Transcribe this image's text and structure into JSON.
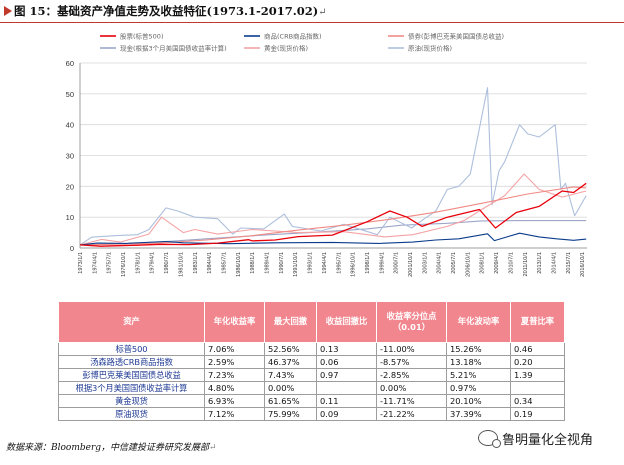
{
  "header": {
    "title": "图 15：基础资产净值走势及收益特征(1973.1-2017.02)",
    "return_mark": "↵"
  },
  "chart_data": {
    "type": "line",
    "title": "",
    "xlabel": "",
    "ylabel": "",
    "ylim": [
      0,
      60
    ],
    "yticks": [
      0,
      10,
      20,
      30,
      40,
      50,
      60
    ],
    "grid": true,
    "legend_position": "top",
    "x_ticks": [
      "1973/1/1",
      "1974/4/1",
      "1975/7/1",
      "1976/10/1",
      "1978/1/1",
      "1979/4/1",
      "1980/7/1",
      "1981/10/1",
      "1983/1/1",
      "1984/4/1",
      "1985/7/1",
      "1986/10/1",
      "1988/1/1",
      "1989/4/1",
      "1990/7/1",
      "1991/10/1",
      "1993/1/1",
      "1994/4/1",
      "1995/7/1",
      "1996/10/1",
      "1998/1/1",
      "1999/4/1",
      "2000/7/1",
      "2001/10/1",
      "2003/1/1",
      "2004/4/1",
      "2005/7/1",
      "2006/10/1",
      "2008/1/1",
      "2009/4/1",
      "2010/7/1",
      "2011/10/1",
      "2013/1/1",
      "2014/4/1",
      "2015/7/1",
      "2016/10/1"
    ],
    "series": [
      {
        "name": "股票(标普500)",
        "color": "#e8000b",
        "x": [
          1973,
          1974.8,
          1978,
          1980,
          1982.5,
          1985,
          1987.7,
          1988,
          1990,
          1992,
          1995,
          1998,
          2000,
          2001.5,
          2002.8,
          2005,
          2007.8,
          2009.2,
          2011,
          2013,
          2015,
          2016,
          2017.1
        ],
        "y": [
          1.0,
          0.6,
          0.9,
          1.2,
          1.1,
          1.6,
          2.7,
          2.3,
          2.6,
          3.7,
          4.2,
          8.5,
          12.0,
          10.0,
          7.0,
          10.0,
          12.5,
          6.5,
          11.5,
          13.5,
          18.5,
          18.0,
          21.0
        ]
      },
      {
        "name": "商品(CRB商品指数)",
        "color": "#0b3c8c",
        "x": [
          1973,
          1974.5,
          1977,
          1980.5,
          1982,
          1986,
          1990,
          1995,
          1999,
          2002,
          2004,
          2006,
          2008.5,
          2009.1,
          2011.3,
          2013,
          2014.5,
          2016,
          2017.1
        ],
        "y": [
          1.0,
          1.6,
          1.5,
          2.1,
          1.7,
          1.4,
          1.7,
          1.8,
          1.5,
          1.9,
          2.6,
          3.0,
          4.6,
          2.4,
          4.8,
          3.6,
          3.0,
          2.5,
          2.9
        ]
      },
      {
        "name": "债券(彭博巴克莱美国国债总收益)",
        "color": "#f08b85",
        "x": [
          1973,
          1977,
          1980,
          1984,
          1988,
          1992,
          1996,
          2000,
          2004,
          2008,
          2012,
          2016,
          2017.1
        ],
        "y": [
          1.0,
          1.3,
          1.6,
          2.6,
          4.0,
          5.8,
          7.4,
          9.3,
          11.6,
          14.5,
          17.5,
          19.8,
          19.5
        ]
      },
      {
        "name": "现金(根据3个月美国国债收益率计算)",
        "color": "#9da6c9",
        "x": [
          1973,
          1977,
          1981,
          1984,
          1989,
          1993,
          1998,
          2001,
          2005,
          2008,
          2012,
          2017.1
        ],
        "y": [
          1.0,
          1.4,
          2.2,
          3.0,
          4.2,
          5.0,
          6.2,
          7.4,
          8.0,
          8.8,
          8.9,
          8.9
        ]
      },
      {
        "name": "黄金(现货价格)",
        "color": "#f4a3a5",
        "x": [
          1973,
          1974.9,
          1976.5,
          1979,
          1980.1,
          1982,
          1983,
          1985,
          1988,
          1992,
          1996,
          1999.5,
          2002,
          2005,
          2006.5,
          2008,
          2010,
          2011.7,
          2013,
          2015,
          2017.1
        ],
        "y": [
          1.0,
          2.8,
          1.9,
          4.5,
          10.0,
          5.0,
          6.0,
          4.5,
          6.0,
          5.0,
          5.3,
          3.6,
          4.3,
          7.0,
          9.0,
          12.5,
          17.0,
          24.0,
          19.0,
          16.5,
          18.5
        ]
      },
      {
        "name": "原油(现货价格)",
        "color": "#adbfdc",
        "x": [
          1973,
          1974,
          1976,
          1978,
          1979,
          1980.5,
          1981.5,
          1983,
          1985,
          1986.3,
          1987,
          1989,
          1990.8,
          1991.5,
          1994,
          1996,
          1998.9,
          2000,
          2001.9,
          2003,
          2004,
          2005,
          2006,
          2007,
          2008.5,
          2008.9,
          2009.5,
          2010,
          2011.3,
          2012,
          2013,
          2014.4,
          2014.9,
          2015.3,
          2015.9,
          2016.1,
          2017.1
        ],
        "y": [
          1.0,
          3.5,
          4.0,
          4.3,
          6.0,
          13.0,
          12.0,
          10.0,
          9.5,
          4.5,
          6.5,
          6.2,
          11.0,
          7.0,
          5.5,
          7.7,
          4.3,
          10.0,
          6.5,
          9.5,
          12.0,
          19.0,
          20.0,
          24.0,
          52.0,
          14.0,
          25.0,
          28.0,
          40.0,
          37.0,
          36.0,
          40.0,
          19.0,
          21.0,
          13.0,
          10.5,
          17.0
        ]
      }
    ]
  },
  "table": {
    "headers": [
      "资产",
      "年化收益率",
      "最大回撤",
      "收益回撤比",
      "收益率分位点（0.01）",
      "年化波动率",
      "夏普比率"
    ],
    "rows": [
      [
        "标普500",
        "7.06%",
        "52.56%",
        "0.13",
        "-11.00%",
        "15.26%",
        "0.46"
      ],
      [
        "汤森路透CRB商品指数",
        "2.59%",
        "46.37%",
        "0.06",
        "-8.57%",
        "13.18%",
        "0.20"
      ],
      [
        "彭博巴克莱美国国债总收益",
        "7.23%",
        "7.43%",
        "0.97",
        "-2.85%",
        "5.21%",
        "1.39"
      ],
      [
        "根据3个月美国国债收益率计算",
        "4.80%",
        "0.00%",
        "",
        "0.00%",
        "0.97%",
        ""
      ],
      [
        "黄金现货",
        "6.93%",
        "61.65%",
        "0.11",
        "-11.71%",
        "20.10%",
        "0.34"
      ],
      [
        "原油现货",
        "7.12%",
        "75.99%",
        "0.09",
        "-21.22%",
        "37.39%",
        "0.19"
      ]
    ]
  },
  "footer": {
    "source": "数据来源：Bloomberg，中信建投证券研究发展部",
    "return_mark": "↵"
  },
  "watermark": {
    "text": "鲁明量化全视角"
  }
}
